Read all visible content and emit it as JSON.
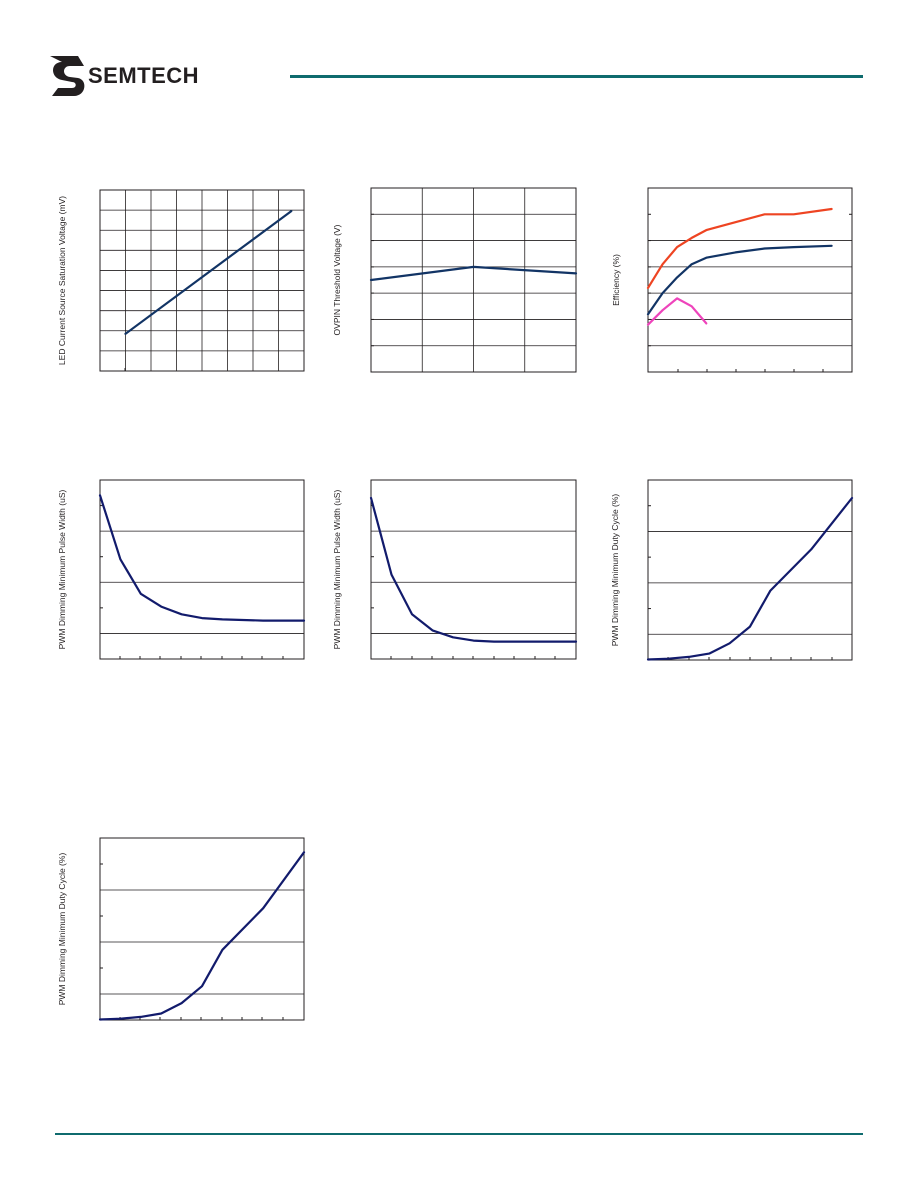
{
  "header": {
    "company": "SEMTECH",
    "colors": {
      "rule": "#0f6b6e",
      "logo": "#231f20"
    }
  },
  "chart_data": [
    {
      "id": "c1",
      "type": "line",
      "ylabel": "LED Current Source Saturation Voltage (mV)",
      "xlim": [
        0,
        8
      ],
      "ylim": [
        0,
        9
      ],
      "y_gridlines": 9,
      "x_gridlines": 8,
      "series": [
        {
          "color": "#123465",
          "x": [
            1,
            7.5
          ],
          "y": [
            1.85,
            7.95
          ]
        }
      ]
    },
    {
      "id": "c2",
      "type": "line",
      "ylabel": "OVPIN Threshold Voltage (V)",
      "xlim": [
        0,
        4
      ],
      "ylim": [
        0,
        7
      ],
      "y_gridlines": 7,
      "x_gridlines": 4,
      "series": [
        {
          "color": "#123465",
          "x": [
            0,
            2,
            4
          ],
          "y": [
            3.5,
            4.0,
            3.75
          ]
        }
      ]
    },
    {
      "id": "c3",
      "type": "line",
      "ylabel": "Efficiency (%)",
      "xlim": [
        0,
        7
      ],
      "ylim": [
        0,
        7
      ],
      "y_gridlines": 7,
      "x_gridlines": 0,
      "series": [
        {
          "color": "#ee4422",
          "x": [
            0,
            0.5,
            1,
            1.5,
            2,
            3,
            4,
            5,
            6.3
          ],
          "y": [
            3.2,
            4.1,
            4.75,
            5.1,
            5.4,
            5.7,
            6.0,
            6.0,
            6.2
          ]
        },
        {
          "color": "#123465",
          "x": [
            0,
            0.5,
            1,
            1.5,
            2,
            3,
            4,
            5,
            6.3
          ],
          "y": [
            2.2,
            3.0,
            3.6,
            4.1,
            4.35,
            4.55,
            4.7,
            4.75,
            4.8
          ]
        },
        {
          "color": "#ee44bb",
          "x": [
            0,
            0.5,
            1,
            1.5,
            2
          ],
          "y": [
            1.8,
            2.35,
            2.8,
            2.5,
            1.85
          ]
        }
      ]
    },
    {
      "id": "c4",
      "type": "line",
      "ylabel": "PWM Dimming Minimum Pulse Width (uS)",
      "xlim": [
        0,
        10
      ],
      "ylim": [
        0,
        7
      ],
      "y_gridlines": 7,
      "x_gridlines": 0,
      "series": [
        {
          "color": "#121b6c",
          "x": [
            0,
            1,
            2,
            3,
            4,
            5,
            6,
            8,
            10
          ],
          "y": [
            6.4,
            3.9,
            2.55,
            2.05,
            1.75,
            1.6,
            1.55,
            1.5,
            1.5
          ]
        }
      ]
    },
    {
      "id": "c5",
      "type": "line",
      "ylabel": "PWM Dimming Minimum Pulse Width (uS)",
      "xlim": [
        0,
        10
      ],
      "ylim": [
        0,
        7
      ],
      "y_gridlines": 7,
      "x_gridlines": 0,
      "series": [
        {
          "color": "#121b6c",
          "x": [
            0,
            1,
            2,
            3,
            4,
            5,
            6,
            8,
            10
          ],
          "y": [
            6.3,
            3.3,
            1.75,
            1.12,
            0.85,
            0.72,
            0.68,
            0.68,
            0.68
          ]
        }
      ]
    },
    {
      "id": "c6",
      "type": "line",
      "ylabel": "PWM Dimming Minimum Duty Cycle (%)",
      "xlim": [
        0,
        10
      ],
      "ylim": [
        0,
        7
      ],
      "y_gridlines": 7,
      "x_gridlines": 0,
      "series": [
        {
          "color": "#121b6c",
          "x": [
            0,
            1,
            2,
            3,
            4,
            5,
            6,
            8,
            10
          ],
          "y": [
            0.02,
            0.05,
            0.12,
            0.25,
            0.65,
            1.3,
            2.7,
            4.3,
            6.3
          ]
        }
      ]
    },
    {
      "id": "c7",
      "type": "line",
      "ylabel": "PWM Dimming Minimum Duty Cycle (%)",
      "xlim": [
        0,
        10
      ],
      "ylim": [
        0,
        7
      ],
      "y_gridlines": 7,
      "x_gridlines": 0,
      "series": [
        {
          "color": "#121b6c",
          "x": [
            0,
            1,
            2,
            3,
            4,
            5,
            6,
            8,
            10
          ],
          "y": [
            0.02,
            0.05,
            0.12,
            0.25,
            0.65,
            1.3,
            2.7,
            4.3,
            6.45
          ]
        }
      ]
    }
  ]
}
